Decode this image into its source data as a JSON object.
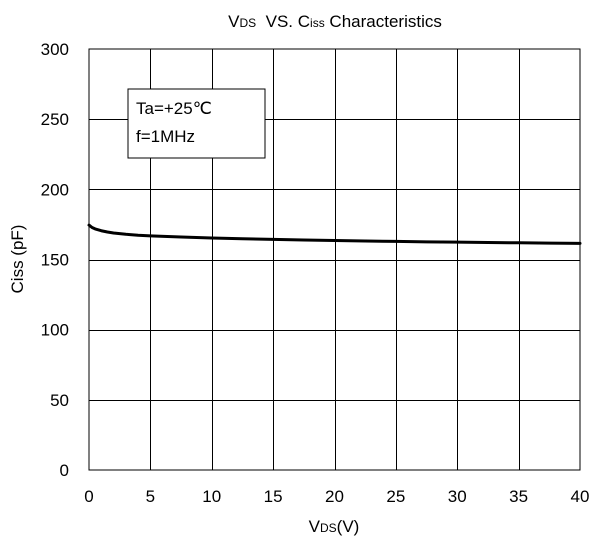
{
  "chart_data": {
    "type": "line",
    "title": {
      "part1": "V",
      "part1_sub": "DS",
      "part2": "  VS. C",
      "part2_sub": "iss",
      "part3": " Characteristics"
    },
    "xlabel": {
      "main": "V",
      "sub": "DS",
      "suffix": "(V)"
    },
    "ylabel": "Ciss (pF)",
    "xlim": [
      0,
      40
    ],
    "ylim": [
      0,
      300
    ],
    "x_ticks": [
      0,
      5,
      10,
      15,
      20,
      25,
      30,
      35,
      40
    ],
    "x_tick_labels": [
      "0",
      "5",
      "10",
      "15",
      "20",
      "25",
      "30",
      "35",
      "40"
    ],
    "y_ticks": [
      0,
      50,
      100,
      150,
      200,
      250,
      300
    ],
    "y_tick_labels": [
      "0",
      "50",
      "100",
      "150",
      "200",
      "250",
      "300"
    ],
    "grid": true,
    "legend_placement": "top-left",
    "annotation": {
      "line1": "Ta=+25℃",
      "line2": "f=1MHz"
    },
    "series": [
      {
        "x": [
          0,
          0.25,
          0.5,
          1,
          1.5,
          2,
          3,
          4,
          5,
          7.5,
          10,
          12.5,
          15,
          17.5,
          20,
          22.5,
          25,
          27.5,
          30,
          32.5,
          35,
          37.5,
          40
        ],
        "values": [
          174.5,
          172.8,
          171.8,
          170.5,
          169.6,
          168.9,
          168.0,
          167.3,
          166.8,
          166.0,
          165.3,
          164.8,
          164.3,
          163.9,
          163.5,
          163.2,
          162.9,
          162.6,
          162.4,
          162.1,
          161.9,
          161.7,
          161.5
        ]
      }
    ],
    "line_color": "#000000"
  }
}
